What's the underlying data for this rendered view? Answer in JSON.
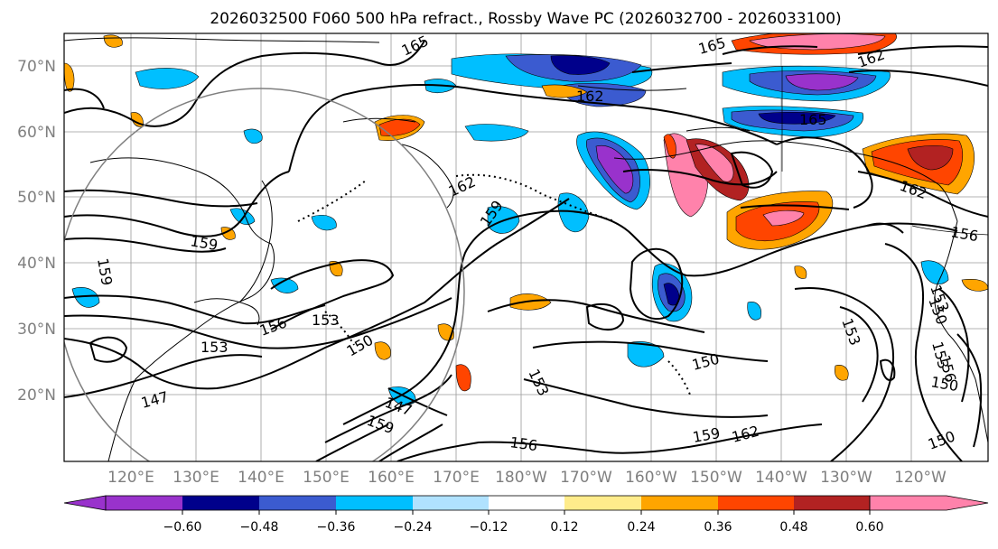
{
  "title": "2026032500 F060 500 hPa refract., Rossby Wave PC (2026032700 - 2026033100)",
  "map": {
    "lat_labels": [
      "70°N",
      "60°N",
      "50°N",
      "40°N",
      "30°N",
      "20°N"
    ],
    "lon_labels": [
      "120°E",
      "130°E",
      "140°E",
      "150°E",
      "160°E",
      "170°E",
      "180°W",
      "170°W",
      "160°W",
      "150°W",
      "140°W",
      "130°W",
      "120°W"
    ],
    "contour_labels": [
      "165",
      "165",
      "162",
      "162",
      "165",
      "162",
      "162",
      "159",
      "159",
      "159",
      "156",
      "153",
      "153",
      "156",
      "153",
      "150",
      "147",
      "147",
      "159",
      "156",
      "150",
      "153",
      "159",
      "162",
      "150",
      "153",
      "153",
      "150",
      "150",
      "156"
    ]
  },
  "colorbar": {
    "colors": [
      "#9932cc",
      "#00008b",
      "#3b5bd0",
      "#00bfff",
      "#b0e2ff",
      "#ffffff",
      "#ffec8b",
      "#ffa500",
      "#ff4500",
      "#b22222",
      "#ff82ab"
    ],
    "tick_labels": [
      "−0.60",
      "−0.48",
      "−0.36",
      "−0.24",
      "−0.12",
      "0.12",
      "0.24",
      "0.36",
      "0.48",
      "0.60"
    ]
  }
}
